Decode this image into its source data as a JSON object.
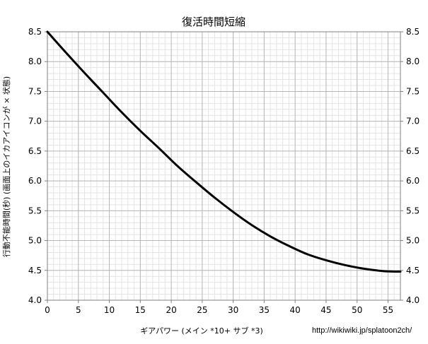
{
  "chart_data": {
    "type": "line",
    "title": "復活時間短縮",
    "xlabel": "ギアパワー (メイン *10+ サブ *3)",
    "ylabel": "行動不能時間(秒) (画面上のイカアイコンが × 状態)",
    "xlim": [
      0,
      57
    ],
    "ylim": [
      4.0,
      8.5
    ],
    "x_ticks": [
      "0",
      "5",
      "10",
      "15",
      "20",
      "25",
      "30",
      "35",
      "40",
      "45",
      "50",
      "55"
    ],
    "y_ticks": [
      "4.0",
      "4.5",
      "5.0",
      "5.5",
      "6.0",
      "6.5",
      "7.0",
      "7.5",
      "8.0",
      "8.5"
    ],
    "grid": true,
    "minor_grid": true,
    "right_axis": true,
    "line_color": "#000000",
    "series": [
      {
        "name": "",
        "x": [
          0,
          3,
          6,
          9,
          12,
          15,
          18,
          21,
          24,
          27,
          30,
          33,
          36,
          39,
          42,
          45,
          48,
          51,
          54,
          56,
          57
        ],
        "y": [
          8.5,
          8.15,
          7.81,
          7.48,
          7.15,
          6.84,
          6.55,
          6.25,
          5.98,
          5.72,
          5.48,
          5.26,
          5.07,
          4.91,
          4.77,
          4.67,
          4.59,
          4.53,
          4.49,
          4.48,
          4.48
        ]
      }
    ]
  },
  "credit": "http://wikiwiki.jp/splatoon2ch/"
}
